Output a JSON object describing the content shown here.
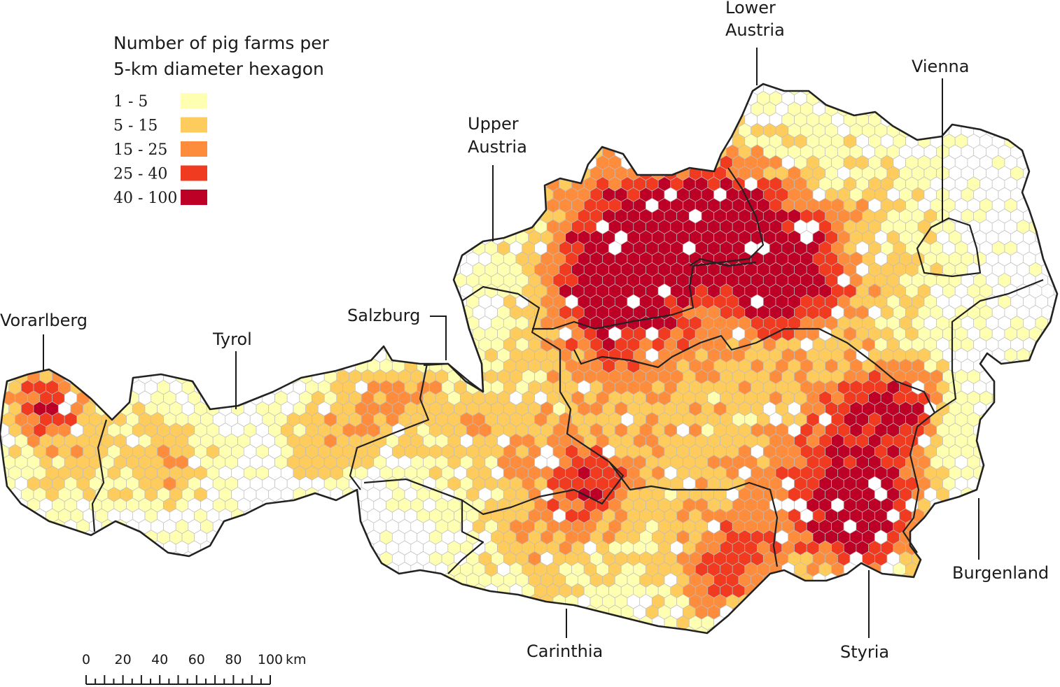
{
  "legend": {
    "title_line1": "Number of pig farms per",
    "title_line2": "5-km diameter hexagon",
    "classes": [
      {
        "label": "1 - 5",
        "color": "#ffffb2"
      },
      {
        "label": "5 - 15",
        "color": "#fecc5c"
      },
      {
        "label": "15 - 25",
        "color": "#fd8d3c"
      },
      {
        "label": "25 - 40",
        "color": "#f03b20"
      },
      {
        "label": "40 - 100",
        "color": "#bd0026"
      }
    ]
  },
  "empty_hex_color": "#ffffff",
  "hex_outline_color": "#bdbdbd",
  "border_color": "#222222",
  "regions": {
    "vorarlberg": "Vorarlberg",
    "tyrol": "Tyrol",
    "salzburg": "Salzburg",
    "upper_austria_1": "Upper",
    "upper_austria_2": "Austria",
    "lower_austria_1": "Lower",
    "lower_austria_2": "Austria",
    "vienna": "Vienna",
    "burgenland": "Burgenland",
    "styria": "Styria",
    "carinthia": "Carinthia"
  },
  "scale_bar": {
    "ticks": [
      "0",
      "20",
      "40",
      "60",
      "80",
      "100"
    ],
    "unit": "km"
  }
}
